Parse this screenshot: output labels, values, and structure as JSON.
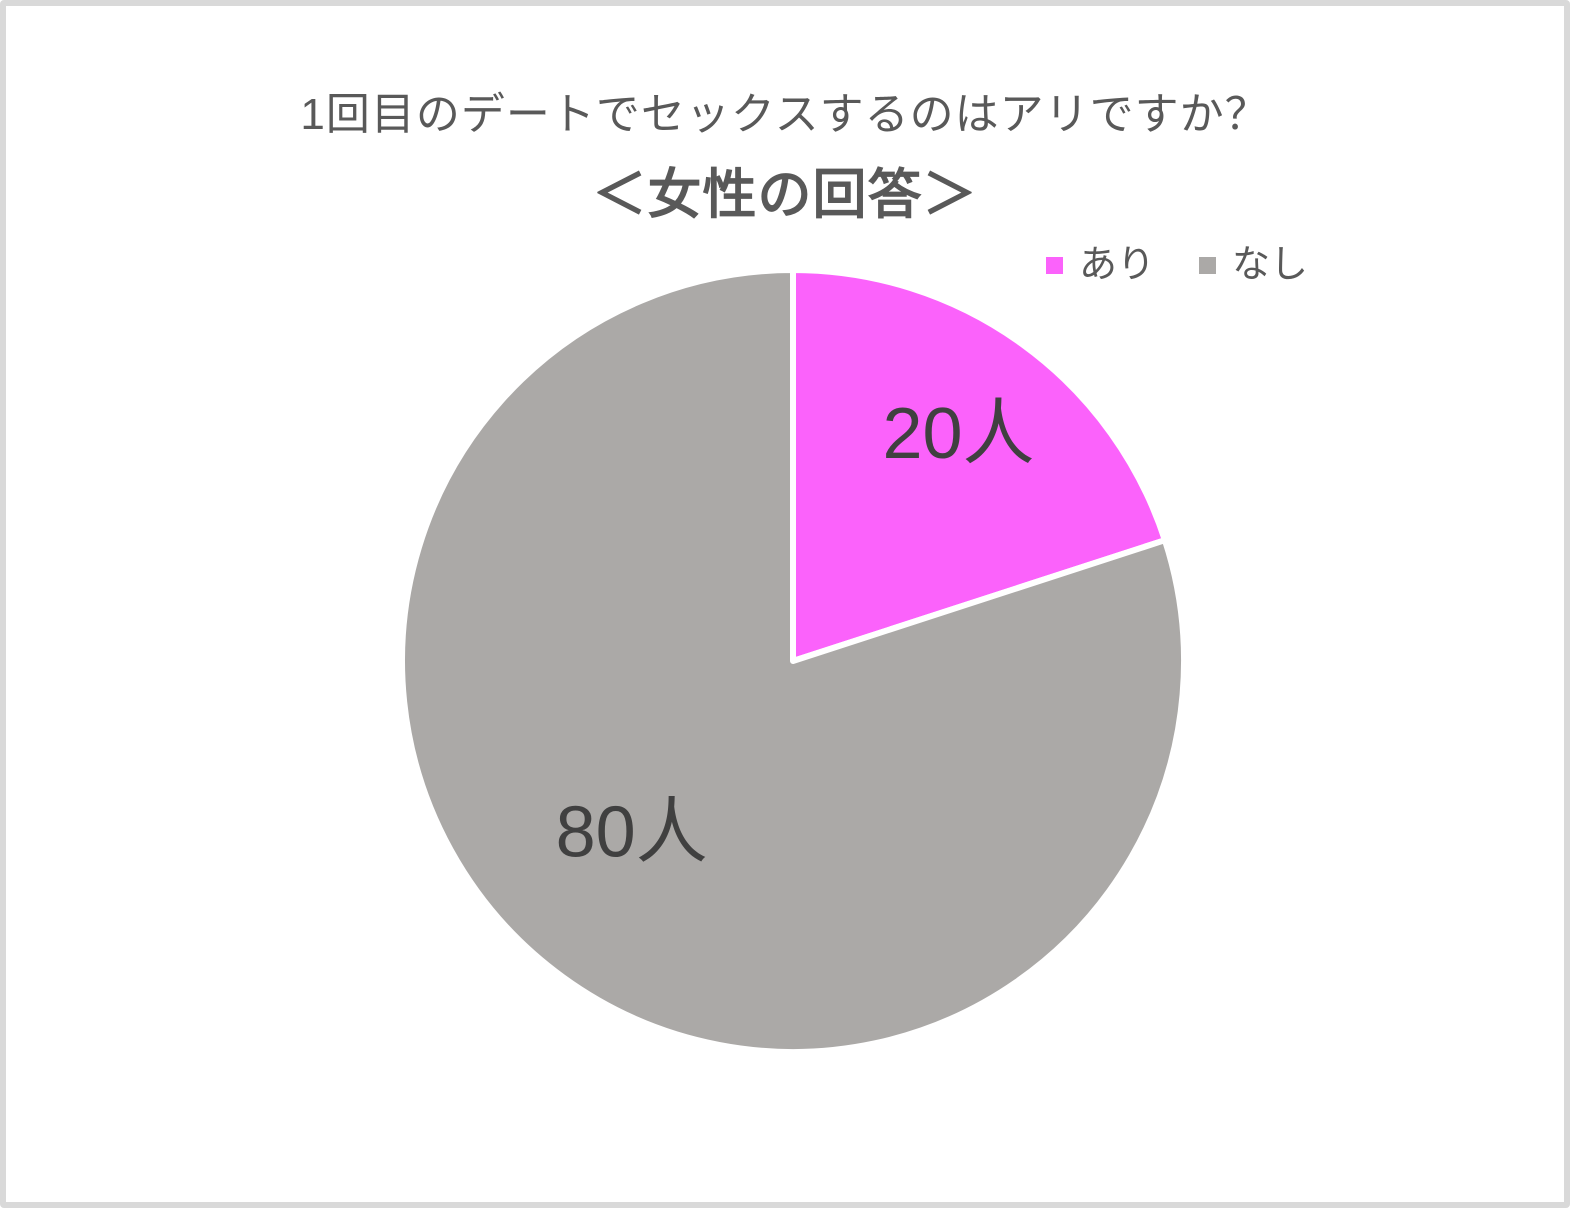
{
  "chart_data": {
    "type": "pie",
    "title": "1回目のデートでセックスするのはアリですか？",
    "subtitle": "＜女性の回答＞",
    "categories": [
      "あり",
      "なし"
    ],
    "values": [
      20,
      80
    ],
    "data_labels": [
      "20人",
      "80人"
    ],
    "colors": [
      "#FB62FB",
      "#ABA9A7"
    ],
    "slice_names": [
      "ari",
      "nashi"
    ],
    "units": "人",
    "title_color": "#595959",
    "label_text_color": "#404040",
    "legend_text_color": "#595959",
    "legend_position": "top-right",
    "start_angle_deg": 0,
    "direction": "clockwise",
    "slice_border_color": "#FFFFFF"
  }
}
